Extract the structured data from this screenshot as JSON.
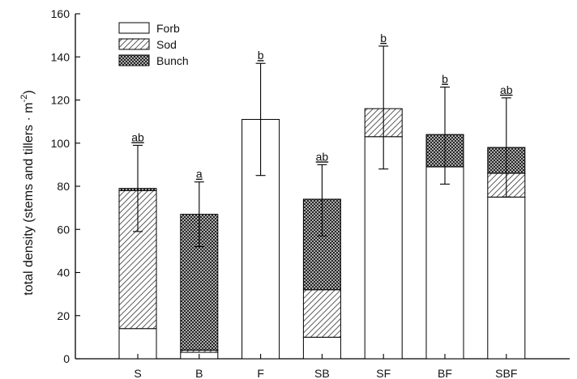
{
  "chart_data": {
    "type": "bar",
    "stacked": true,
    "categories": [
      "S",
      "B",
      "F",
      "SB",
      "SF",
      "BF",
      "SBF"
    ],
    "series": [
      {
        "name": "Forb",
        "pattern": "none",
        "values": [
          14,
          3,
          111,
          10,
          103,
          89,
          75
        ]
      },
      {
        "name": "Sod",
        "pattern": "diagonal",
        "values": [
          64,
          1,
          0,
          22,
          13,
          0,
          11
        ]
      },
      {
        "name": "Bunch",
        "pattern": "crosshatch",
        "values": [
          1,
          63,
          0,
          42,
          0,
          15,
          12
        ]
      }
    ],
    "error_bars": {
      "upper": [
        99,
        82,
        137,
        90,
        145,
        126,
        121
      ],
      "lower": [
        59,
        52,
        85,
        57,
        88,
        81,
        75
      ]
    },
    "significance_labels": [
      "ab",
      "a",
      "b",
      "ab",
      "b",
      "b",
      "ab"
    ],
    "ylabel": "total density (stems and tillers · m",
    "ylabel_superscript": "-2",
    "ylabel_close": ")",
    "ylim": [
      0,
      160
    ],
    "yticks": [
      0,
      20,
      40,
      60,
      80,
      100,
      120,
      140,
      160
    ],
    "legend_position": "top-left",
    "grid": false
  }
}
